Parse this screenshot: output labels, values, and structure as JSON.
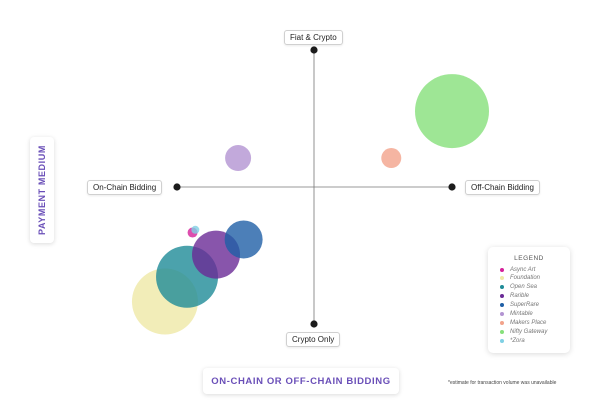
{
  "chart_data": {
    "type": "scatter",
    "title": "",
    "xlabel": "ON-CHAIN OR OFF-CHAIN BIDDING",
    "ylabel": "PAYMENT MEDIUM",
    "x_axis": {
      "left_label": "On-Chain Bidding",
      "right_label": "Off-Chain Bidding",
      "range": [
        -1,
        1
      ]
    },
    "y_axis": {
      "top_label": "Fiat & Crypto",
      "bottom_label": "Crypto Only",
      "range": [
        -1,
        1
      ]
    },
    "legend": {
      "title": "LEGEND",
      "placement": "bottom-right",
      "entries": [
        {
          "name": "Async Art",
          "color": "#d4219a"
        },
        {
          "name": "Foundation",
          "color": "#efe8a6"
        },
        {
          "name": "Open Sea",
          "color": "#1e8b97"
        },
        {
          "name": "Rarible",
          "color": "#6a2a96"
        },
        {
          "name": "SuperRare",
          "color": "#1f5fa6"
        },
        {
          "name": "Mintable",
          "color": "#b394d2"
        },
        {
          "name": "Makers Place",
          "color": "#f2a38b"
        },
        {
          "name": "Nifty Gateway",
          "color": "#86e07a"
        },
        {
          "name": "*Zora",
          "color": "#7fd0e4"
        }
      ]
    },
    "series": [
      {
        "name": "Async Art",
        "x": -0.88,
        "y": -0.33,
        "size": 0.05,
        "color": "#d4219a"
      },
      {
        "name": "Zora",
        "x": -0.86,
        "y": -0.31,
        "size": 0.04,
        "color": "#7fd0e4"
      },
      {
        "name": "Foundation",
        "x": -1.08,
        "y": -0.83,
        "size": 0.33,
        "color": "#efe8a6"
      },
      {
        "name": "Open Sea",
        "x": -0.92,
        "y": -0.65,
        "size": 0.31,
        "color": "#1e8b97"
      },
      {
        "name": "Rarible",
        "x": -0.71,
        "y": -0.49,
        "size": 0.24,
        "color": "#6a2a96"
      },
      {
        "name": "SuperRare",
        "x": -0.51,
        "y": -0.38,
        "size": 0.19,
        "color": "#1f5fa6"
      },
      {
        "name": "Mintable",
        "x": -0.55,
        "y": 0.21,
        "size": 0.13,
        "color": "#b394d2"
      },
      {
        "name": "Makers Place",
        "x": 0.56,
        "y": 0.21,
        "size": 0.1,
        "color": "#f2a38b"
      },
      {
        "name": "Nifty Gateway",
        "x": 1.0,
        "y": 0.55,
        "size": 0.37,
        "color": "#86e07a"
      }
    ]
  },
  "footnote": "*estimate for transaction volume was unavailable"
}
